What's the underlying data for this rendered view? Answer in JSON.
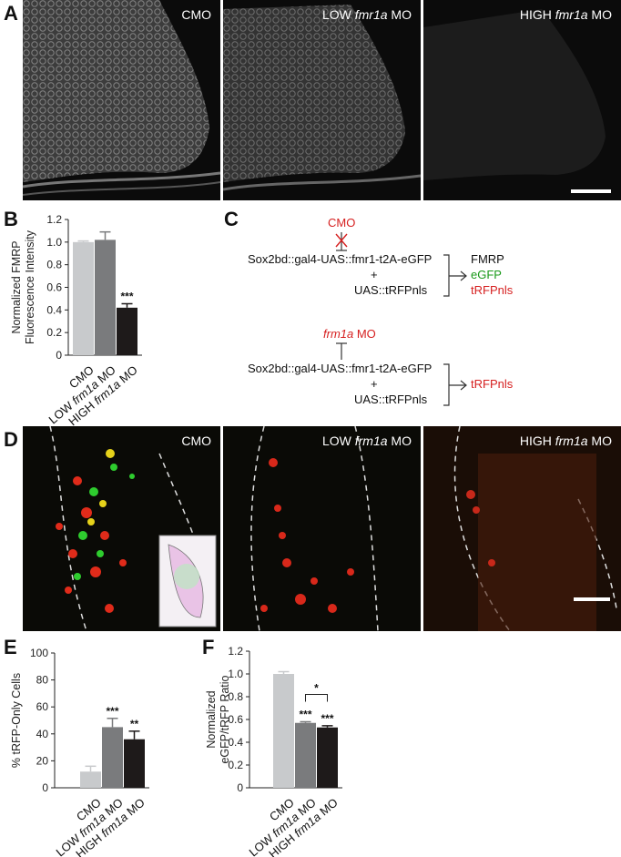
{
  "panels": {
    "A": {
      "letter": "A",
      "images": [
        {
          "label_plain": "CMO",
          "label_italic": "",
          "label_suffix": ""
        },
        {
          "label_plain": "LOW ",
          "label_italic": "fmr1a",
          "label_suffix": " MO"
        },
        {
          "label_plain": "HIGH ",
          "label_italic": "fmr1a",
          "label_suffix": " MO"
        }
      ]
    },
    "B": {
      "letter": "B"
    },
    "C": {
      "letter": "C",
      "top": {
        "inhibitor": "CMO",
        "construct1": "Sox2bd::gal4-UAS::fmr1-t2A-eGFP",
        "plus": "+",
        "construct2": "UAS::tRFPnls",
        "outputs": [
          "FMRP",
          "eGFP",
          "tRFPnls"
        ]
      },
      "bottom": {
        "inhibitor_italic": "frm1a",
        "inhibitor_suffix": " MO",
        "construct1": "Sox2bd::gal4-UAS::fmr1-t2A-eGFP",
        "plus": "+",
        "construct2": "UAS::tRFPnls",
        "outputs": [
          "tRFPnls"
        ]
      }
    },
    "D": {
      "letter": "D",
      "images": [
        {
          "label_plain": "CMO",
          "label_italic": "",
          "label_suffix": ""
        },
        {
          "label_plain": "LOW ",
          "label_italic": "frm1a",
          "label_suffix": " MO"
        },
        {
          "label_plain": "HIGH ",
          "label_italic": "frm1a",
          "label_suffix": " MO"
        }
      ]
    },
    "E": {
      "letter": "E"
    },
    "F": {
      "letter": "F"
    }
  },
  "chart_data": [
    {
      "id": "B",
      "type": "bar",
      "ylabel": "Normalized FMRP Fluorescence Intensity",
      "ylabel_lines": [
        "Normalized FMRP",
        "Fluorescence Intensity"
      ],
      "ylim": [
        0,
        1.2
      ],
      "yticks": [
        "0",
        "0.2",
        "0.4",
        "0.6",
        "0.8",
        "1.0",
        "1.2"
      ],
      "categories": [
        "CMO",
        "LOW frm1a MO",
        "HIGH frm1a MO"
      ],
      "category_parts": [
        [
          "CMO",
          ""
        ],
        [
          "LOW ",
          "frm1a MO"
        ],
        [
          "HIGH ",
          "frm1a MO"
        ]
      ],
      "values": [
        1.0,
        1.02,
        0.42
      ],
      "errors": [
        0.01,
        0.07,
        0.035
      ],
      "colors": [
        "#c8cacc",
        "#7a7b7d",
        "#1e1a1a"
      ],
      "significance": [
        "",
        "",
        "***"
      ],
      "brackets": []
    },
    {
      "id": "E",
      "type": "bar",
      "ylabel": "% tRFP-Only Cells",
      "ylabel_lines": [
        "% tRFP-Only Cells"
      ],
      "ylim": [
        0,
        100
      ],
      "yticks": [
        "0",
        "20",
        "40",
        "60",
        "80",
        "100"
      ],
      "categories": [
        "CMO",
        "LOW frm1a MO",
        "HIGH frm1a MO"
      ],
      "category_parts": [
        [
          "CMO",
          ""
        ],
        [
          "LOW ",
          "frm1a MO"
        ],
        [
          "HIGH ",
          "frm1a MO"
        ]
      ],
      "values": [
        12,
        45,
        36
      ],
      "errors": [
        4,
        6.5,
        6
      ],
      "colors": [
        "#c8cacc",
        "#7a7b7d",
        "#1e1a1a"
      ],
      "significance": [
        "",
        "***",
        "**"
      ],
      "brackets": []
    },
    {
      "id": "F",
      "type": "bar",
      "ylabel": "Normalized eGFP/tRFP Ratio",
      "ylabel_lines": [
        "Normalized",
        "eGFP/tRFP Ratio"
      ],
      "ylim": [
        0,
        1.2
      ],
      "yticks": [
        "0",
        "0.2",
        "0.4",
        "0.6",
        "0.8",
        "1.0",
        "1.2"
      ],
      "categories": [
        "CMO",
        "LOW frm1a MO",
        "HIGH frm1a MO"
      ],
      "category_parts": [
        [
          "CMO",
          ""
        ],
        [
          "LOW ",
          "frm1a MO"
        ],
        [
          "HIGH ",
          "frm1a MO"
        ]
      ],
      "values": [
        1.0,
        0.57,
        0.53
      ],
      "errors": [
        0.02,
        0.01,
        0.015
      ],
      "colors": [
        "#c8cacc",
        "#7a7b7d",
        "#1e1a1a"
      ],
      "significance": [
        "",
        "***",
        "***"
      ],
      "brackets": [
        {
          "from": 1,
          "to": 2,
          "label": "*"
        }
      ]
    }
  ]
}
